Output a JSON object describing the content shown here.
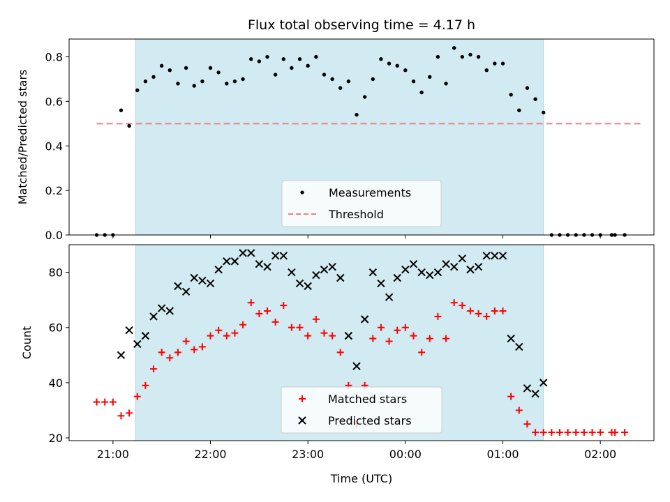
{
  "chart_data": [
    {
      "type": "scatter",
      "title": "Flux total observing time = 4.17 h",
      "xlabel": "",
      "ylabel": "Matched/Predicted stars",
      "x_unit": "hours UTC",
      "xlim": [
        "20:33",
        "02:33"
      ],
      "ylim": [
        0,
        0.88
      ],
      "yticks": [
        0.0,
        0.2,
        0.4,
        0.6,
        0.8
      ],
      "ytick_labels": [
        "0.0",
        "0.2",
        "0.4",
        "0.6",
        "0.8"
      ],
      "shaded_span": [
        "21:14",
        "01:25"
      ],
      "shade_color": "#add8e6",
      "threshold": {
        "name": "Threshold",
        "value": 0.5,
        "x_range": [
          "20:50",
          "02:25"
        ],
        "color": "#f08080",
        "style": "dashed"
      },
      "series": [
        {
          "name": "Measurements",
          "marker": "dot",
          "color": "#000000",
          "points": [
            [
              "20:50",
              0.0
            ],
            [
              "20:55",
              0.0
            ],
            [
              "21:00",
              0.0
            ],
            [
              "21:05",
              0.56
            ],
            [
              "21:10",
              0.49
            ],
            [
              "21:15",
              0.65
            ],
            [
              "21:20",
              0.69
            ],
            [
              "21:25",
              0.71
            ],
            [
              "21:30",
              0.76
            ],
            [
              "21:35",
              0.74
            ],
            [
              "21:40",
              0.68
            ],
            [
              "21:45",
              0.75
            ],
            [
              "21:50",
              0.67
            ],
            [
              "21:55",
              0.69
            ],
            [
              "22:00",
              0.75
            ],
            [
              "22:05",
              0.73
            ],
            [
              "22:10",
              0.68
            ],
            [
              "22:15",
              0.69
            ],
            [
              "22:20",
              0.7
            ],
            [
              "22:25",
              0.79
            ],
            [
              "22:30",
              0.78
            ],
            [
              "22:35",
              0.8
            ],
            [
              "22:40",
              0.72
            ],
            [
              "22:45",
              0.79
            ],
            [
              "22:50",
              0.75
            ],
            [
              "22:55",
              0.79
            ],
            [
              "23:00",
              0.76
            ],
            [
              "23:05",
              0.8
            ],
            [
              "23:10",
              0.72
            ],
            [
              "23:15",
              0.7
            ],
            [
              "23:20",
              0.66
            ],
            [
              "23:25",
              0.69
            ],
            [
              "23:30",
              0.54
            ],
            [
              "23:35",
              0.62
            ],
            [
              "23:40",
              0.7
            ],
            [
              "23:45",
              0.79
            ],
            [
              "23:50",
              0.77
            ],
            [
              "23:55",
              0.76
            ],
            [
              "00:00",
              0.74
            ],
            [
              "00:05",
              0.69
            ],
            [
              "00:10",
              0.64
            ],
            [
              "00:15",
              0.71
            ],
            [
              "00:20",
              0.8
            ],
            [
              "00:25",
              0.68
            ],
            [
              "00:30",
              0.84
            ],
            [
              "00:35",
              0.8
            ],
            [
              "00:40",
              0.81
            ],
            [
              "00:45",
              0.8
            ],
            [
              "00:50",
              0.74
            ],
            [
              "00:55",
              0.77
            ],
            [
              "01:00",
              0.77
            ],
            [
              "01:05",
              0.63
            ],
            [
              "01:10",
              0.56
            ],
            [
              "01:15",
              0.66
            ],
            [
              "01:20",
              0.61
            ],
            [
              "01:25",
              0.55
            ],
            [
              "01:30",
              0.0
            ],
            [
              "01:35",
              0.0
            ],
            [
              "01:40",
              0.0
            ],
            [
              "01:45",
              0.0
            ],
            [
              "01:50",
              0.0
            ],
            [
              "01:55",
              0.0
            ],
            [
              "02:00",
              0.0
            ],
            [
              "02:07",
              0.0
            ],
            [
              "02:09",
              0.0
            ],
            [
              "02:15",
              0.0
            ]
          ]
        }
      ],
      "legend": {
        "placement": "lower-center",
        "entries": [
          "Measurements",
          "Threshold"
        ]
      }
    },
    {
      "type": "scatter",
      "title": "",
      "xlabel": "Time (UTC)",
      "ylabel": "Count",
      "x_unit": "hours UTC",
      "xlim": [
        "20:33",
        "02:33"
      ],
      "ylim": [
        19,
        90
      ],
      "yticks": [
        20,
        40,
        60,
        80
      ],
      "ytick_labels": [
        "20",
        "40",
        "60",
        "80"
      ],
      "xticks": [
        "21:00",
        "22:00",
        "23:00",
        "00:00",
        "01:00",
        "02:00"
      ],
      "xtick_labels": [
        "21:00",
        "22:00",
        "23:00",
        "00:00",
        "01:00",
        "02:00"
      ],
      "shaded_span": [
        "21:14",
        "01:25"
      ],
      "shade_color": "#add8e6",
      "series": [
        {
          "name": "Matched stars",
          "marker": "plus",
          "color": "#ff0000",
          "points": [
            [
              "20:50",
              33
            ],
            [
              "20:55",
              33
            ],
            [
              "21:00",
              33
            ],
            [
              "21:05",
              28
            ],
            [
              "21:10",
              29
            ],
            [
              "21:15",
              35
            ],
            [
              "21:20",
              39
            ],
            [
              "21:25",
              45
            ],
            [
              "21:30",
              51
            ],
            [
              "21:35",
              49
            ],
            [
              "21:40",
              51
            ],
            [
              "21:45",
              55
            ],
            [
              "21:50",
              52
            ],
            [
              "21:55",
              53
            ],
            [
              "22:00",
              57
            ],
            [
              "22:05",
              59
            ],
            [
              "22:10",
              57
            ],
            [
              "22:15",
              58
            ],
            [
              "22:20",
              61
            ],
            [
              "22:25",
              69
            ],
            [
              "22:30",
              65
            ],
            [
              "22:35",
              66
            ],
            [
              "22:40",
              62
            ],
            [
              "22:45",
              68
            ],
            [
              "22:50",
              60
            ],
            [
              "22:55",
              60
            ],
            [
              "23:00",
              57
            ],
            [
              "23:05",
              63
            ],
            [
              "23:10",
              58
            ],
            [
              "23:15",
              57
            ],
            [
              "23:20",
              51
            ],
            [
              "23:25",
              39
            ],
            [
              "23:30",
              25
            ],
            [
              "23:35",
              39
            ],
            [
              "23:40",
              56
            ],
            [
              "23:45",
              60
            ],
            [
              "23:50",
              55
            ],
            [
              "23:55",
              59
            ],
            [
              "00:00",
              60
            ],
            [
              "00:05",
              57
            ],
            [
              "00:10",
              51
            ],
            [
              "00:15",
              56
            ],
            [
              "00:20",
              64
            ],
            [
              "00:25",
              56
            ],
            [
              "00:30",
              69
            ],
            [
              "00:35",
              68
            ],
            [
              "00:40",
              66
            ],
            [
              "00:45",
              65
            ],
            [
              "00:50",
              64
            ],
            [
              "00:55",
              66
            ],
            [
              "01:00",
              66
            ],
            [
              "01:05",
              35
            ],
            [
              "01:10",
              30
            ],
            [
              "01:15",
              25
            ],
            [
              "01:20",
              22
            ],
            [
              "01:25",
              22
            ],
            [
              "01:30",
              22
            ],
            [
              "01:35",
              22
            ],
            [
              "01:40",
              22
            ],
            [
              "01:45",
              22
            ],
            [
              "01:50",
              22
            ],
            [
              "01:55",
              22
            ],
            [
              "02:00",
              22
            ],
            [
              "02:07",
              22
            ],
            [
              "02:09",
              22
            ],
            [
              "02:15",
              22
            ]
          ]
        },
        {
          "name": "Predicted stars",
          "marker": "x",
          "color": "#000000",
          "points": [
            [
              "21:05",
              50
            ],
            [
              "21:10",
              59
            ],
            [
              "21:15",
              54
            ],
            [
              "21:20",
              57
            ],
            [
              "21:25",
              64
            ],
            [
              "21:30",
              67
            ],
            [
              "21:35",
              66
            ],
            [
              "21:40",
              75
            ],
            [
              "21:45",
              73
            ],
            [
              "21:50",
              78
            ],
            [
              "21:55",
              77
            ],
            [
              "22:00",
              76
            ],
            [
              "22:05",
              81
            ],
            [
              "22:10",
              84
            ],
            [
              "22:15",
              84
            ],
            [
              "22:20",
              87
            ],
            [
              "22:25",
              87
            ],
            [
              "22:30",
              83
            ],
            [
              "22:35",
              82
            ],
            [
              "22:40",
              86
            ],
            [
              "22:45",
              86
            ],
            [
              "22:50",
              80
            ],
            [
              "22:55",
              76
            ],
            [
              "23:00",
              75
            ],
            [
              "23:05",
              79
            ],
            [
              "23:10",
              81
            ],
            [
              "23:15",
              82
            ],
            [
              "23:20",
              78
            ],
            [
              "23:25",
              57
            ],
            [
              "23:30",
              46
            ],
            [
              "23:35",
              63
            ],
            [
              "23:40",
              80
            ],
            [
              "23:45",
              76
            ],
            [
              "23:50",
              71
            ],
            [
              "23:55",
              78
            ],
            [
              "00:00",
              81
            ],
            [
              "00:05",
              83
            ],
            [
              "00:10",
              80
            ],
            [
              "00:15",
              79
            ],
            [
              "00:20",
              80
            ],
            [
              "00:25",
              83
            ],
            [
              "00:30",
              82
            ],
            [
              "00:35",
              85
            ],
            [
              "00:40",
              81
            ],
            [
              "00:45",
              82
            ],
            [
              "00:50",
              86
            ],
            [
              "00:55",
              86
            ],
            [
              "01:00",
              86
            ],
            [
              "01:05",
              56
            ],
            [
              "01:10",
              53
            ],
            [
              "01:15",
              38
            ],
            [
              "01:20",
              36
            ],
            [
              "01:25",
              40
            ]
          ]
        }
      ],
      "legend": {
        "placement": "lower-center",
        "entries": [
          "Matched stars",
          "Predicted stars"
        ]
      }
    }
  ]
}
